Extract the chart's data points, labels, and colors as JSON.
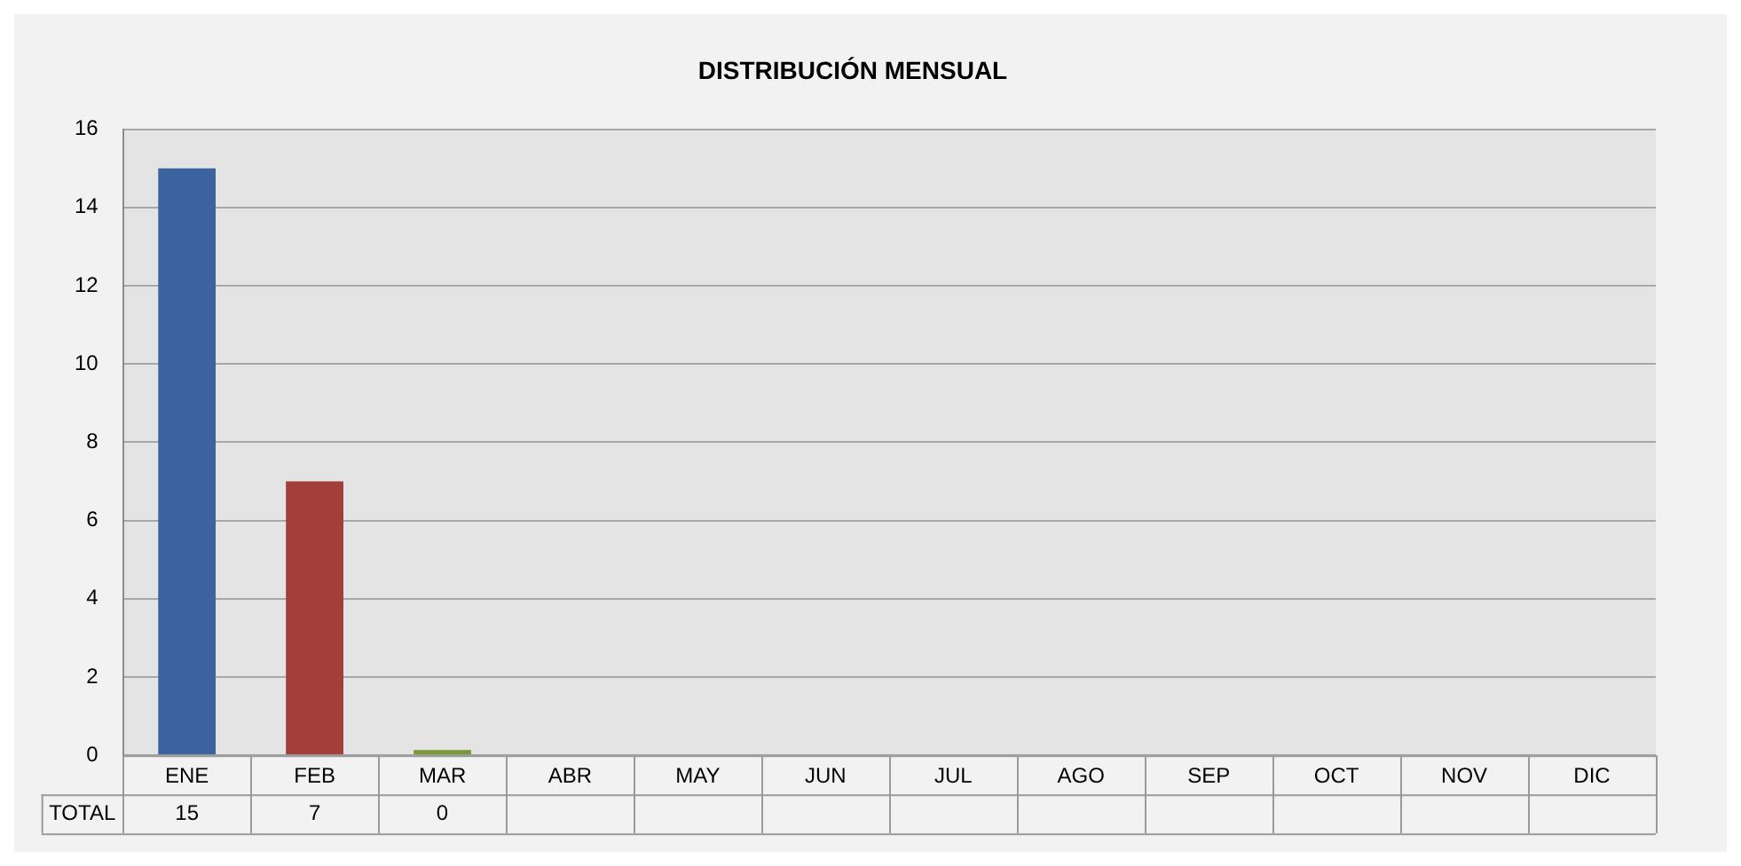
{
  "chart_data": {
    "type": "bar",
    "title": "DISTRIBUCIÓN MENSUAL",
    "categories": [
      "ENE",
      "FEB",
      "MAR",
      "ABR",
      "MAY",
      "JUN",
      "JUL",
      "AGO",
      "SEP",
      "OCT",
      "NOV",
      "DIC"
    ],
    "series": [
      {
        "name": "TOTAL",
        "colors": [
          "#3b63a0",
          "#a33e3b",
          "#7a9a3a",
          null,
          null,
          null,
          null,
          null,
          null,
          null,
          null,
          null
        ],
        "values": [
          15,
          7,
          0,
          null,
          null,
          null,
          null,
          null,
          null,
          null,
          null,
          null
        ]
      }
    ],
    "ylim": [
      0,
      16
    ],
    "yticks": [
      0,
      2,
      4,
      6,
      8,
      10,
      12,
      14,
      16
    ],
    "grid": "y",
    "data_labels": true,
    "legend": false
  }
}
